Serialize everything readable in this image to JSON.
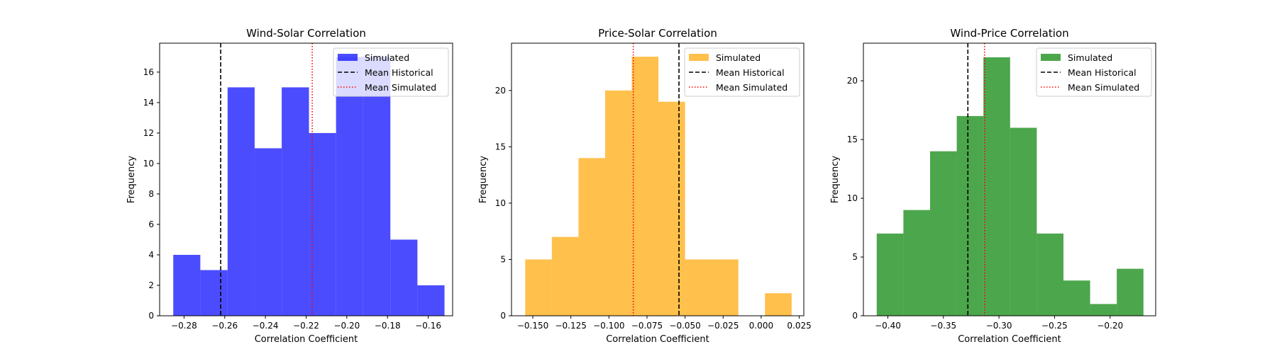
{
  "chart_data": [
    {
      "type": "histogram",
      "title": "Wind-Solar Correlation",
      "xlabel": "Correlation Coefficient",
      "ylabel": "Frequency",
      "xlim": [
        -0.292,
        -0.148
      ],
      "ylim": [
        0,
        17.9
      ],
      "xticks": [
        -0.28,
        -0.26,
        -0.24,
        -0.22,
        -0.2,
        -0.18,
        -0.16
      ],
      "xtick_labels": [
        "−0.28",
        "−0.26",
        "−0.24",
        "−0.22",
        "−0.20",
        "−0.18",
        "−0.16"
      ],
      "yticks": [
        0,
        2,
        4,
        6,
        8,
        10,
        12,
        14,
        16
      ],
      "bin_edges": [
        -0.2853,
        -0.272,
        -0.2586,
        -0.2453,
        -0.232,
        -0.2186,
        -0.2053,
        -0.192,
        -0.1786,
        -0.1653,
        -0.152
      ],
      "counts": [
        4,
        3,
        15,
        11,
        15,
        12,
        17,
        17,
        5,
        2
      ],
      "bar_color": "#0000ff",
      "bar_alpha": 0.7,
      "mean_historical": -0.262,
      "mean_simulated": -0.217,
      "legend": {
        "placement": "upper right",
        "entries": [
          "Simulated",
          "Mean Historical",
          "Mean Simulated"
        ]
      }
    },
    {
      "type": "histogram",
      "title": "Price-Solar Correlation",
      "xlabel": "Correlation Coefficient",
      "ylabel": "Frequency",
      "xlim": [
        -0.164,
        0.028
      ],
      "ylim": [
        0,
        24.2
      ],
      "xticks": [
        -0.15,
        -0.125,
        -0.1,
        -0.075,
        -0.05,
        -0.025,
        0.0,
        0.025
      ],
      "xtick_labels": [
        "−0.150",
        "−0.125",
        "−0.100",
        "−0.075",
        "−0.050",
        "−0.025",
        "0.000",
        "0.025"
      ],
      "yticks": [
        0,
        5,
        10,
        15,
        20
      ],
      "bin_edges": [
        -0.155,
        -0.1375,
        -0.12,
        -0.1025,
        -0.085,
        -0.0675,
        -0.05,
        -0.0325,
        -0.015,
        0.0025,
        0.02
      ],
      "counts": [
        5,
        7,
        14,
        20,
        23,
        19,
        5,
        5,
        0,
        2
      ],
      "bar_color": "#ffa500",
      "bar_alpha": 0.7,
      "mean_historical": -0.054,
      "mean_simulated": -0.084,
      "legend": {
        "placement": "upper right",
        "entries": [
          "Simulated",
          "Mean Historical",
          "Mean Simulated"
        ]
      }
    },
    {
      "type": "histogram",
      "title": "Wind-Price Correlation",
      "xlabel": "Correlation Coefficient",
      "ylabel": "Frequency",
      "xlim": [
        -0.422,
        -0.159
      ],
      "ylim": [
        0,
        23.2
      ],
      "xticks": [
        -0.4,
        -0.35,
        -0.3,
        -0.25,
        -0.2
      ],
      "xtick_labels": [
        "−0.40",
        "−0.35",
        "−0.30",
        "−0.25",
        "−0.20"
      ],
      "yticks": [
        0,
        5,
        10,
        15,
        20
      ],
      "bin_edges": [
        -0.41,
        -0.386,
        -0.362,
        -0.338,
        -0.314,
        -0.29,
        -0.266,
        -0.242,
        -0.218,
        -0.194,
        -0.17
      ],
      "counts": [
        7,
        9,
        14,
        17,
        22,
        16,
        7,
        3,
        1,
        4
      ],
      "bar_color": "#008000",
      "bar_alpha": 0.7,
      "mean_historical": -0.328,
      "mean_simulated": -0.313,
      "legend": {
        "placement": "upper right",
        "entries": [
          "Simulated",
          "Mean Historical",
          "Mean Simulated"
        ]
      }
    }
  ]
}
